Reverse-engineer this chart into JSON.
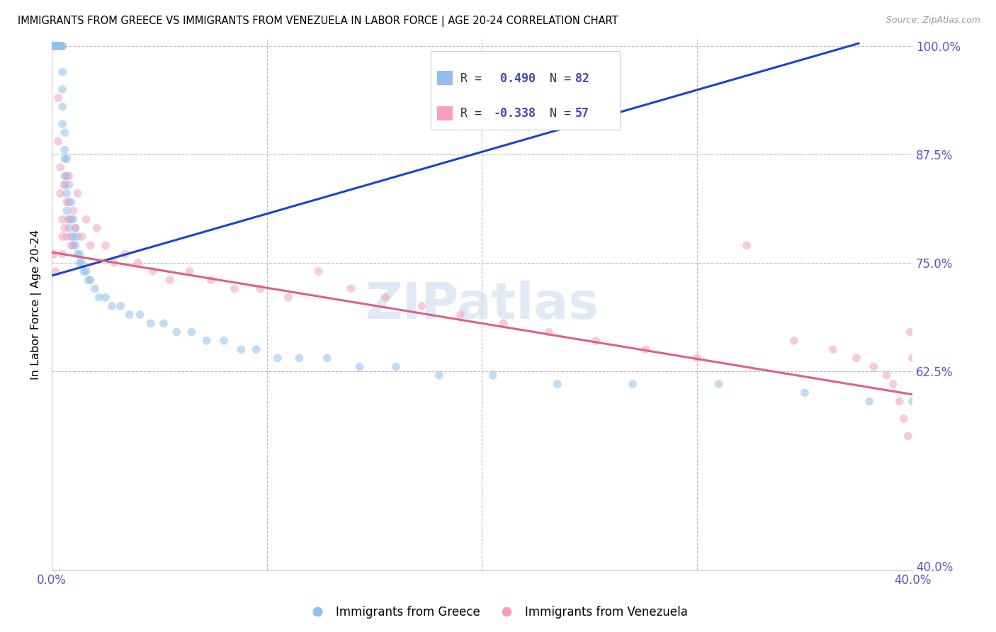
{
  "title": "IMMIGRANTS FROM GREECE VS IMMIGRANTS FROM VENEZUELA IN LABOR FORCE | AGE 20-24 CORRELATION CHART",
  "source": "Source: ZipAtlas.com",
  "ylabel": "In Labor Force | Age 20-24",
  "r_greece": 0.49,
  "n_greece": 82,
  "r_venezuela": -0.338,
  "n_venezuela": 57,
  "xlim": [
    0.0,
    0.4
  ],
  "ylim": [
    0.395,
    1.008
  ],
  "right_yticks": [
    1.0,
    0.875,
    0.75,
    0.625,
    0.4
  ],
  "right_yticklabels": [
    "100.0%",
    "87.5%",
    "75.0%",
    "62.5%",
    "40.0%"
  ],
  "xtick_vals": [
    0.0,
    0.1,
    0.2,
    0.3,
    0.4
  ],
  "xtick_labels": [
    "0.0%",
    "",
    "",
    "",
    "40.0%"
  ],
  "color_greece": "#90C0EE",
  "color_venezuela": "#F5A0C0",
  "trendline_greece": "#1A44CC",
  "trendline_venezuela": "#E06080",
  "marker_size": 72,
  "marker_alpha": 0.55,
  "legend_label_greece": "Immigrants from Greece",
  "legend_label_venezuela": "Immigrants from Venezuela",
  "watermark_text": "ZIPatlas",
  "greece_trend_x0": 0.0,
  "greece_trend_y0": 0.735,
  "greece_trend_x1": 0.375,
  "greece_trend_y1": 1.003,
  "venezuela_trend_x0": 0.0,
  "venezuela_trend_y0": 0.762,
  "venezuela_trend_x1": 0.4,
  "venezuela_trend_y1": 0.598,
  "greece_x": [
    0.001,
    0.001,
    0.001,
    0.002,
    0.002,
    0.002,
    0.002,
    0.003,
    0.003,
    0.003,
    0.003,
    0.003,
    0.003,
    0.004,
    0.004,
    0.004,
    0.004,
    0.004,
    0.005,
    0.005,
    0.005,
    0.005,
    0.005,
    0.005,
    0.006,
    0.006,
    0.006,
    0.006,
    0.006,
    0.007,
    0.007,
    0.007,
    0.007,
    0.008,
    0.008,
    0.008,
    0.008,
    0.009,
    0.009,
    0.009,
    0.01,
    0.01,
    0.01,
    0.011,
    0.011,
    0.012,
    0.012,
    0.013,
    0.013,
    0.014,
    0.015,
    0.016,
    0.017,
    0.018,
    0.02,
    0.022,
    0.025,
    0.028,
    0.032,
    0.036,
    0.041,
    0.046,
    0.052,
    0.058,
    0.065,
    0.072,
    0.08,
    0.088,
    0.095,
    0.105,
    0.115,
    0.128,
    0.143,
    0.16,
    0.18,
    0.205,
    0.235,
    0.27,
    0.31,
    0.35,
    0.38,
    0.4
  ],
  "greece_y": [
    1.0,
    1.0,
    1.0,
    1.0,
    1.0,
    1.0,
    1.0,
    1.0,
    1.0,
    1.0,
    1.0,
    1.0,
    1.0,
    1.0,
    1.0,
    1.0,
    1.0,
    1.0,
    1.0,
    1.0,
    0.97,
    0.95,
    0.93,
    0.91,
    0.9,
    0.88,
    0.87,
    0.85,
    0.84,
    0.87,
    0.85,
    0.83,
    0.81,
    0.84,
    0.82,
    0.8,
    0.79,
    0.82,
    0.8,
    0.78,
    0.8,
    0.78,
    0.77,
    0.79,
    0.77,
    0.78,
    0.76,
    0.76,
    0.75,
    0.75,
    0.74,
    0.74,
    0.73,
    0.73,
    0.72,
    0.71,
    0.71,
    0.7,
    0.7,
    0.69,
    0.69,
    0.68,
    0.68,
    0.67,
    0.67,
    0.66,
    0.66,
    0.65,
    0.65,
    0.64,
    0.64,
    0.64,
    0.63,
    0.63,
    0.62,
    0.62,
    0.61,
    0.61,
    0.61,
    0.6,
    0.59,
    0.59
  ],
  "venezuela_x": [
    0.001,
    0.002,
    0.003,
    0.003,
    0.004,
    0.004,
    0.005,
    0.005,
    0.005,
    0.006,
    0.006,
    0.007,
    0.007,
    0.008,
    0.008,
    0.009,
    0.01,
    0.011,
    0.012,
    0.014,
    0.016,
    0.018,
    0.021,
    0.025,
    0.029,
    0.034,
    0.04,
    0.047,
    0.055,
    0.064,
    0.074,
    0.085,
    0.097,
    0.11,
    0.124,
    0.139,
    0.155,
    0.172,
    0.19,
    0.21,
    0.231,
    0.253,
    0.276,
    0.3,
    0.323,
    0.345,
    0.363,
    0.374,
    0.382,
    0.388,
    0.391,
    0.394,
    0.396,
    0.398,
    0.399,
    0.4,
    0.402
  ],
  "venezuela_y": [
    0.76,
    0.74,
    0.94,
    0.89,
    0.86,
    0.83,
    0.8,
    0.78,
    0.76,
    0.84,
    0.79,
    0.82,
    0.78,
    0.85,
    0.8,
    0.77,
    0.81,
    0.79,
    0.83,
    0.78,
    0.8,
    0.77,
    0.79,
    0.77,
    0.75,
    0.76,
    0.75,
    0.74,
    0.73,
    0.74,
    0.73,
    0.72,
    0.72,
    0.71,
    0.74,
    0.72,
    0.71,
    0.7,
    0.69,
    0.68,
    0.67,
    0.66,
    0.65,
    0.64,
    0.77,
    0.66,
    0.65,
    0.64,
    0.63,
    0.62,
    0.61,
    0.59,
    0.57,
    0.55,
    0.67,
    0.64,
    0.6
  ]
}
